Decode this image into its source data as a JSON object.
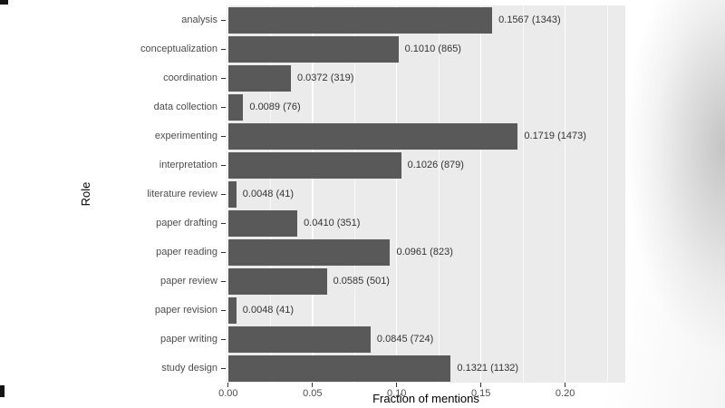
{
  "chart_data": {
    "type": "bar",
    "orientation": "horizontal",
    "title": "",
    "xlabel": "Fraction of mentions",
    "ylabel": "Role",
    "categories": [
      "analysis",
      "conceptualization",
      "coordination",
      "data collection",
      "experimenting",
      "interpretation",
      "literature review",
      "paper drafting",
      "paper reading",
      "paper review",
      "paper revision",
      "paper writing",
      "study design"
    ],
    "values": [
      0.1567,
      0.101,
      0.0372,
      0.0089,
      0.1719,
      0.1026,
      0.0048,
      0.041,
      0.0961,
      0.0585,
      0.0048,
      0.0845,
      0.1321
    ],
    "counts": [
      1343,
      865,
      319,
      76,
      1473,
      879,
      41,
      351,
      823,
      501,
      41,
      724,
      1132
    ],
    "bar_labels": [
      "0.1567 (1343)",
      "0.1010 (865)",
      "0.0372 (319)",
      "0.0089 (76)",
      "0.1719 (1473)",
      "0.1026 (879)",
      "0.0048 (41)",
      "0.0410 (351)",
      "0.0961 (823)",
      "0.0585 (501)",
      "0.0048 (41)",
      "0.0845 (724)",
      "0.1321 (1132)"
    ],
    "x_ticks": {
      "values": [
        0,
        0.05,
        0.1,
        0.15,
        0.2
      ],
      "labels": [
        "0.00",
        "0.05",
        "0.10",
        "0.15",
        "0.20"
      ]
    },
    "x_minor_ticks": [
      0.025,
      0.075,
      0.125,
      0.175,
      0.225
    ],
    "xlim": [
      -0.001,
      0.2357
    ],
    "grid": true,
    "legend": "none",
    "colors": {
      "bar": "#595959",
      "panel_bg": "#EBEBEB",
      "grid_major": "#FFFFFF",
      "tick_text": "#4D4D4D",
      "annotation_text": "#333333",
      "axis_title": "#000000"
    }
  }
}
